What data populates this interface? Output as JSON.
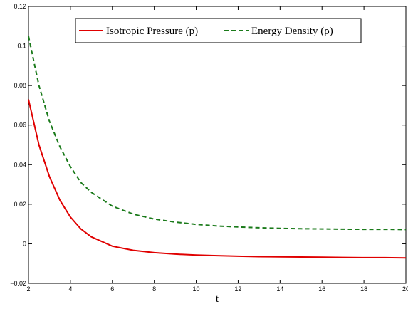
{
  "chart_data": {
    "type": "line",
    "title": "",
    "xlabel": "t",
    "ylabel": "",
    "xlim": [
      2,
      20
    ],
    "ylim": [
      -0.02,
      0.12
    ],
    "grid": false,
    "legend_placement": "top",
    "x_ticks": [
      "2",
      "4",
      "6",
      "8",
      "10",
      "12",
      "14",
      "16",
      "18",
      "20"
    ],
    "y_ticks": [
      "−0.02",
      "0",
      "0.02",
      "0.04",
      "0.06",
      "0.08",
      "0.1",
      "0.12"
    ],
    "x": [
      2,
      2.5,
      3,
      3.5,
      4,
      4.5,
      5,
      6,
      7,
      8,
      9,
      10,
      11,
      12,
      13,
      14,
      15,
      16,
      17,
      18,
      19,
      20
    ],
    "series": [
      {
        "name": "Isotropic Pressure (p)",
        "color": "#e00000",
        "dash": "solid",
        "values": [
          0.073,
          0.05,
          0.034,
          0.022,
          0.0135,
          0.0075,
          0.0035,
          -0.0012,
          -0.0033,
          -0.0045,
          -0.0052,
          -0.0057,
          -0.006,
          -0.0063,
          -0.0065,
          -0.0066,
          -0.0067,
          -0.0068,
          -0.0069,
          -0.007,
          -0.007,
          -0.0071
        ]
      },
      {
        "name": "Energy Density (ρ)",
        "color": "#1a7a1a",
        "dash": "dashed",
        "values": [
          0.105,
          0.08,
          0.062,
          0.049,
          0.039,
          0.031,
          0.026,
          0.019,
          0.015,
          0.0125,
          0.011,
          0.0098,
          0.009,
          0.0085,
          0.0081,
          0.0078,
          0.0076,
          0.0075,
          0.0074,
          0.0073,
          0.0073,
          0.0072
        ]
      }
    ]
  }
}
